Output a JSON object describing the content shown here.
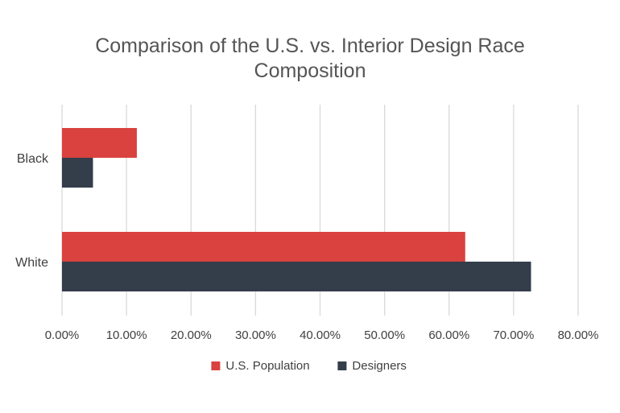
{
  "chart_data": {
    "type": "bar",
    "orientation": "horizontal",
    "title_lines": [
      "Comparison of the U.S. vs. Interior Design Race",
      "Composition"
    ],
    "categories": [
      "Black",
      "White"
    ],
    "series": [
      {
        "name": "U.S. Population",
        "color": "#d9423f",
        "values": [
          0.116,
          0.625
        ]
      },
      {
        "name": "Designers",
        "color": "#343d4a",
        "values": [
          0.048,
          0.727
        ]
      }
    ],
    "x_ticks": [
      "0.00%",
      "10.00%",
      "20.00%",
      "30.00%",
      "40.00%",
      "50.00%",
      "60.00%",
      "70.00%",
      "80.00%"
    ],
    "xlim": [
      0,
      0.8
    ],
    "grid": "vertical",
    "legend_position": "bottom",
    "gridline_color": "#d9d9d9"
  }
}
